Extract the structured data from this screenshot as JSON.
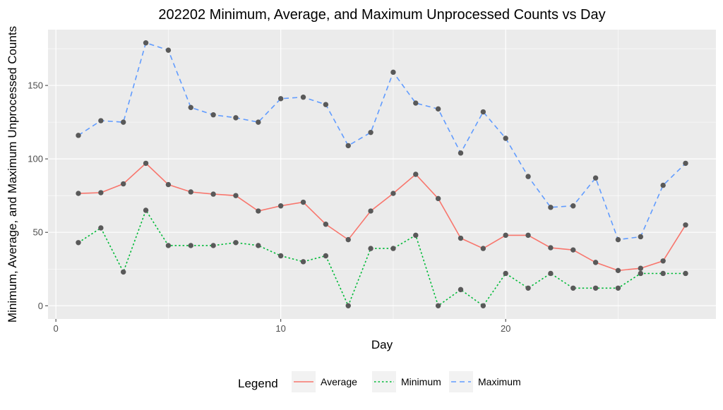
{
  "chart_data": {
    "type": "line",
    "title": "202202 Minimum, Average, and Maximum Unprocessed Counts vs Day",
    "xlabel": "Day",
    "ylabel": "Minimum, Average, and Maximum Unprocessed Counts",
    "xlim": [
      -0.35,
      29.35
    ],
    "ylim": [
      -9,
      188
    ],
    "x_ticks": [
      0,
      10,
      20
    ],
    "y_ticks": [
      0,
      50,
      100,
      150
    ],
    "grid": true,
    "legend_title": "Legend",
    "legend_position": "bottom",
    "x": [
      1,
      2,
      3,
      4,
      5,
      6,
      7,
      8,
      9,
      10,
      11,
      12,
      13,
      14,
      15,
      16,
      17,
      18,
      19,
      20,
      21,
      22,
      23,
      24,
      25,
      26,
      27,
      28
    ],
    "series": [
      {
        "name": "Average",
        "color": "#F8766D",
        "dash": "solid",
        "values": [
          76.5,
          77,
          83,
          97,
          82.5,
          77.5,
          76,
          75,
          64.5,
          68,
          70.5,
          55.5,
          45,
          64.5,
          76.5,
          89.5,
          73,
          46,
          39,
          48,
          48,
          39.5,
          38,
          29.5,
          24,
          25.5,
          30.5,
          55
        ]
      },
      {
        "name": "Minimum",
        "color": "#00BA38",
        "dash": "dotted",
        "values": [
          43,
          53,
          23,
          65,
          41,
          41,
          41,
          43,
          41,
          34,
          30,
          34,
          0,
          39,
          39,
          48,
          0,
          11,
          0,
          22,
          12,
          22,
          12,
          12,
          12,
          22,
          22,
          22
        ]
      },
      {
        "name": "Maximum",
        "color": "#619CFF",
        "dash": "dashed",
        "values": [
          116,
          126,
          125,
          179,
          174,
          135,
          130,
          128,
          125,
          141,
          142,
          137,
          109,
          118,
          159,
          138,
          134,
          104,
          132,
          114,
          88,
          67,
          68,
          87,
          45,
          47,
          82,
          97
        ]
      }
    ],
    "point_color": "#595959"
  }
}
